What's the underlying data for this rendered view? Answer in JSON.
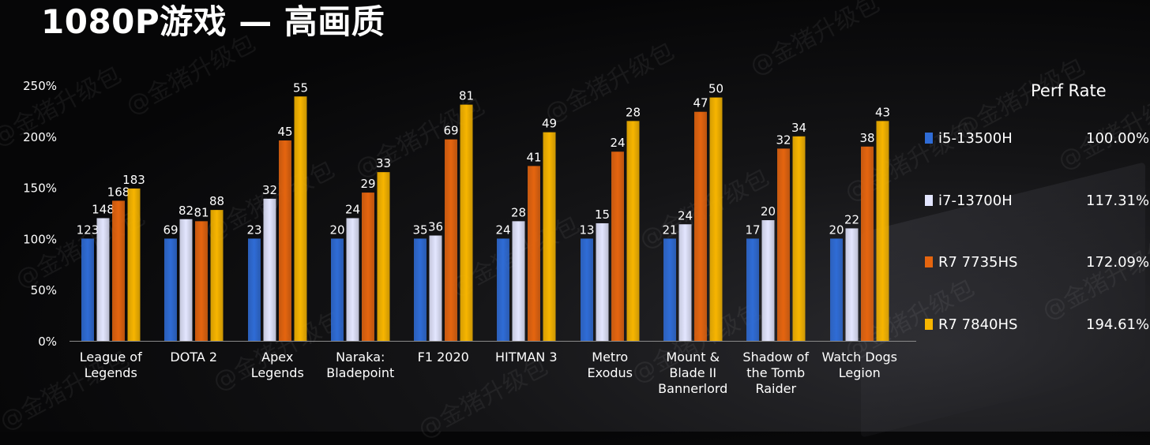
{
  "title": "1080P游戏 — 高画质",
  "watermark": "@金猪升级包",
  "colors": {
    "i5_13500H": "#2f6cd6",
    "i7_13700H": "#e3e6ff",
    "R7_7735HS": "#e5650f",
    "R7_7840HS": "#f7b500"
  },
  "legend": {
    "title": "Perf Rate",
    "items": [
      {
        "name": "i5-13500H",
        "rate": "100.00%",
        "color": "#2f6cd6"
      },
      {
        "name": "i7-13700H",
        "rate": "117.31%",
        "color": "#e3e6ff"
      },
      {
        "name": "R7 7735HS",
        "rate": "172.09%",
        "color": "#e5650f"
      },
      {
        "name": "R7 7840HS",
        "rate": "194.61%",
        "color": "#f7b500"
      }
    ]
  },
  "chart_data": {
    "type": "bar",
    "title": "1080P游戏 — 高画质",
    "ylim": [
      0,
      250
    ],
    "yticks": [
      "0%",
      "50%",
      "100%",
      "150%",
      "200%",
      "250%"
    ],
    "grid": false,
    "legend_position": "right",
    "categories": [
      [
        "League of",
        "Legends"
      ],
      [
        "DOTA 2"
      ],
      [
        "Apex",
        "Legends"
      ],
      [
        "Naraka:",
        "Bladepoint"
      ],
      [
        "F1 2020"
      ],
      [
        "HITMAN 3"
      ],
      [
        "Metro",
        "Exodus"
      ],
      [
        "Mount &",
        "Blade II",
        "Bannerlord"
      ],
      [
        "Shadow of",
        "the Tomb",
        "Raider"
      ],
      [
        "Watch Dogs",
        "Legion"
      ]
    ],
    "series": [
      {
        "name": "i5-13500H",
        "values": [
          100,
          100,
          100,
          100,
          100,
          100,
          100,
          100,
          100,
          100
        ],
        "labels": [
          "123",
          "69",
          "23",
          "20",
          "35",
          "24",
          "13",
          "21",
          "17",
          "20"
        ]
      },
      {
        "name": "i7-13700H",
        "values": [
          120,
          119,
          139,
          120,
          103,
          117,
          115,
          114,
          118,
          110
        ],
        "labels": [
          "148",
          "82",
          "32",
          "24",
          "36",
          "28",
          "15",
          "24",
          "20",
          "22"
        ]
      },
      {
        "name": "R7 7735HS",
        "values": [
          137,
          117,
          196,
          145,
          197,
          171,
          185,
          224,
          188,
          190
        ],
        "labels": [
          "168",
          "81",
          "45",
          "29",
          "69",
          "41",
          "24",
          "47",
          "32",
          "38"
        ]
      },
      {
        "name": "R7 7840HS",
        "values": [
          149,
          128,
          239,
          165,
          231,
          204,
          215,
          238,
          200,
          215
        ],
        "labels": [
          "183",
          "88",
          "55",
          "33",
          "81",
          "49",
          "28",
          "50",
          "34",
          "43"
        ]
      }
    ]
  }
}
